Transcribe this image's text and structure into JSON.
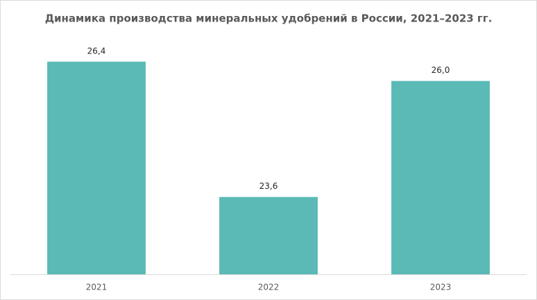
{
  "chart_data": {
    "type": "bar",
    "title": "Динамика производства минеральных удобрений в России, 2021–2023 гг.",
    "categories": [
      "2021",
      "2022",
      "2023"
    ],
    "values": [
      26.4,
      23.6,
      26.0
    ],
    "value_labels": [
      "26,4",
      "23,6",
      "26,0"
    ],
    "color": "#5bbab5",
    "ylim": [
      22,
      27
    ]
  }
}
